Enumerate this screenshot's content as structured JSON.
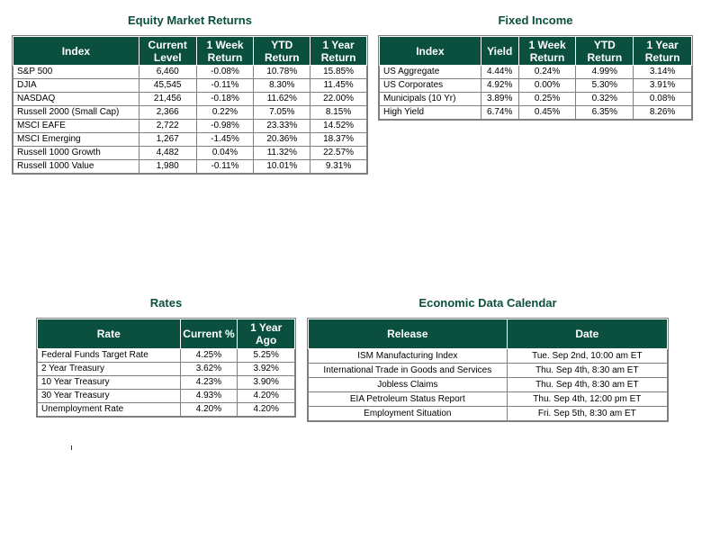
{
  "equity": {
    "title": "Equity Market Returns",
    "headers": [
      "Index",
      "Current Level",
      "1 Week Return",
      "YTD Return",
      "1 Year Return"
    ],
    "rows": [
      [
        "S&P 500",
        "6,460",
        "-0.08%",
        "10.78%",
        "15.85%"
      ],
      [
        "DJIA",
        "45,545",
        "-0.11%",
        "8.30%",
        "11.45%"
      ],
      [
        "NASDAQ",
        "21,456",
        "-0.18%",
        "11.62%",
        "22.00%"
      ],
      [
        "Russell 2000 (Small Cap)",
        "2,366",
        "0.22%",
        "7.05%",
        "8.15%"
      ],
      [
        "MSCI EAFE",
        "2,722",
        "-0.98%",
        "23.33%",
        "14.52%"
      ],
      [
        "MSCI Emerging",
        "1,267",
        "-1.45%",
        "20.36%",
        "18.37%"
      ],
      [
        "Russell 1000 Growth",
        "4,482",
        "0.04%",
        "11.32%",
        "22.57%"
      ],
      [
        "Russell 1000 Value",
        "1,980",
        "-0.11%",
        "10.01%",
        "9.31%"
      ]
    ]
  },
  "fixed_income": {
    "title": "Fixed Income",
    "headers": [
      "Index",
      "Yield",
      "1 Week Return",
      "YTD Return",
      "1 Year Return"
    ],
    "rows": [
      [
        "US Aggregate",
        "4.44%",
        "0.24%",
        "4.99%",
        "3.14%"
      ],
      [
        "US Corporates",
        "4.92%",
        "0.00%",
        "5.30%",
        "3.91%"
      ],
      [
        "Municipals (10 Yr)",
        "3.89%",
        "0.25%",
        "0.32%",
        "0.08%"
      ],
      [
        "High Yield",
        "6.74%",
        "0.45%",
        "6.35%",
        "8.26%"
      ]
    ]
  },
  "rates": {
    "title": "Rates",
    "headers": [
      "Rate",
      "Current %",
      "1 Year Ago"
    ],
    "rows": [
      [
        "Federal Funds Target Rate",
        "4.25%",
        "5.25%"
      ],
      [
        "2 Year Treasury",
        "3.62%",
        "3.92%"
      ],
      [
        "10 Year Treasury",
        "4.23%",
        "3.90%"
      ],
      [
        "30 Year Treasury",
        "4.93%",
        "4.20%"
      ],
      [
        "Unemployment Rate",
        "4.20%",
        "4.20%"
      ]
    ]
  },
  "calendar": {
    "title": "Economic Data Calendar",
    "headers": [
      "Release",
      "Date"
    ],
    "rows": [
      [
        "ISM Manufacturing Index",
        "Tue. Sep 2nd, 10:00 am ET"
      ],
      [
        "International Trade in Goods and Services",
        "Thu. Sep 4th, 8:30 am ET"
      ],
      [
        "Jobless Claims",
        "Thu. Sep 4th, 8:30 am ET"
      ],
      [
        "EIA Petroleum Status Report",
        "Thu. Sep 4th, 12:00 pm ET"
      ],
      [
        "Employment Situation",
        "Fri. Sep 5th, 8:30 am ET"
      ]
    ]
  }
}
